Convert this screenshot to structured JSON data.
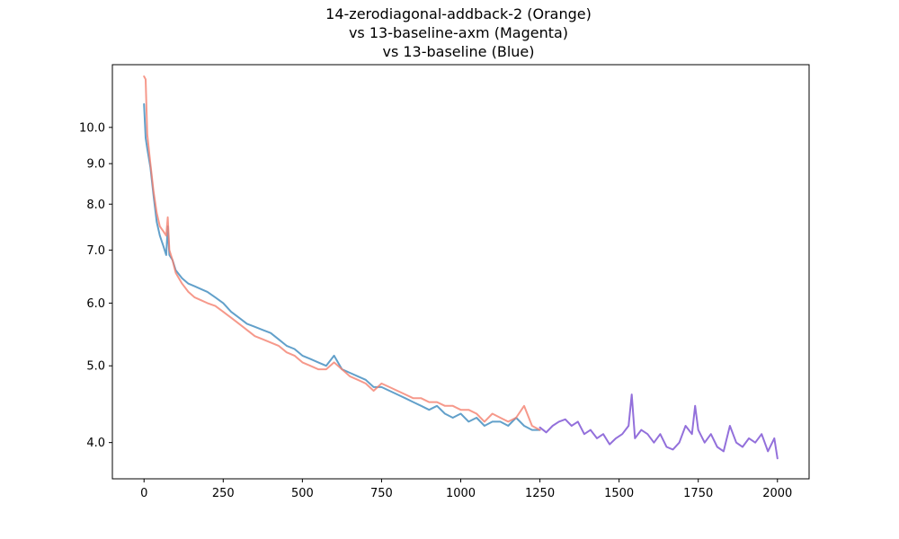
{
  "chart_data": {
    "type": "line",
    "title": [
      "14-zerodiagonal-addback-2 (Orange)",
      "vs 13-baseline-axm (Magenta)",
      "vs 13-baseline (Blue)"
    ],
    "xlabel": "",
    "ylabel": "",
    "xlim": [
      -100,
      2100
    ],
    "ylim": [
      3.6,
      12.0
    ],
    "yscale": "log",
    "grid": false,
    "x_ticks": [
      0,
      250,
      500,
      750,
      1000,
      1250,
      1500,
      1750,
      2000
    ],
    "x_tick_labels": [
      "0",
      "250",
      "500",
      "750",
      "1000",
      "1250",
      "1500",
      "1750",
      "2000"
    ],
    "y_ticks": [
      4.0,
      5.0,
      6.0,
      7.0,
      8.0,
      9.0,
      10.0
    ],
    "y_tick_labels": [
      "4.0",
      "5.0",
      "6.0",
      "7.0",
      "8.0",
      "9.0",
      "10.0"
    ],
    "series": [
      {
        "color": "#9370DB",
        "opacity": 1.0,
        "x": [
          1250,
          1270,
          1290,
          1310,
          1330,
          1350,
          1370,
          1390,
          1410,
          1430,
          1450,
          1470,
          1490,
          1510,
          1530,
          1540,
          1550,
          1570,
          1590,
          1610,
          1630,
          1650,
          1670,
          1690,
          1710,
          1730,
          1740,
          1750,
          1770,
          1790,
          1810,
          1830,
          1850,
          1870,
          1890,
          1910,
          1930,
          1950,
          1970,
          1990,
          2000
        ],
        "y": [
          4.18,
          4.12,
          4.2,
          4.25,
          4.28,
          4.2,
          4.25,
          4.1,
          4.15,
          4.05,
          4.1,
          3.98,
          4.05,
          4.1,
          4.2,
          4.6,
          4.05,
          4.15,
          4.1,
          4.0,
          4.1,
          3.95,
          3.92,
          4.0,
          4.2,
          4.1,
          4.45,
          4.15,
          4.0,
          4.1,
          3.95,
          3.9,
          4.2,
          4.0,
          3.95,
          4.05,
          4.0,
          4.1,
          3.9,
          4.05,
          3.82
        ]
      },
      {
        "color": "#1f77b4",
        "opacity": 0.7,
        "x": [
          0,
          5,
          10,
          20,
          30,
          40,
          50,
          60,
          70,
          75,
          80,
          90,
          100,
          120,
          140,
          160,
          180,
          200,
          225,
          250,
          275,
          300,
          325,
          350,
          375,
          400,
          425,
          450,
          475,
          500,
          525,
          550,
          575,
          600,
          625,
          650,
          675,
          700,
          725,
          750,
          775,
          800,
          825,
          850,
          875,
          900,
          925,
          950,
          975,
          1000,
          1025,
          1050,
          1075,
          1100,
          1125,
          1150,
          1175,
          1200,
          1225,
          1250
        ],
        "y": [
          10.7,
          9.7,
          9.4,
          8.9,
          8.2,
          7.6,
          7.3,
          7.1,
          6.9,
          7.5,
          6.9,
          6.8,
          6.6,
          6.45,
          6.35,
          6.3,
          6.25,
          6.2,
          6.1,
          6.0,
          5.85,
          5.75,
          5.65,
          5.6,
          5.55,
          5.5,
          5.4,
          5.3,
          5.25,
          5.15,
          5.1,
          5.05,
          5.0,
          5.15,
          4.95,
          4.9,
          4.85,
          4.8,
          4.7,
          4.7,
          4.65,
          4.6,
          4.55,
          4.5,
          4.45,
          4.4,
          4.45,
          4.35,
          4.3,
          4.35,
          4.25,
          4.3,
          4.2,
          4.25,
          4.25,
          4.2,
          4.3,
          4.2,
          4.15,
          4.15
        ]
      },
      {
        "color": "#f4806e",
        "opacity": 0.8,
        "x": [
          0,
          5,
          10,
          20,
          30,
          40,
          50,
          60,
          70,
          75,
          80,
          90,
          100,
          120,
          140,
          160,
          180,
          200,
          225,
          250,
          275,
          300,
          325,
          350,
          375,
          400,
          425,
          450,
          475,
          500,
          525,
          550,
          575,
          600,
          625,
          650,
          675,
          700,
          725,
          750,
          775,
          800,
          825,
          850,
          875,
          900,
          925,
          950,
          975,
          1000,
          1025,
          1050,
          1075,
          1100,
          1125,
          1150,
          1175,
          1200,
          1225,
          1250
        ],
        "y": [
          11.6,
          11.5,
          9.8,
          9.0,
          8.3,
          7.8,
          7.5,
          7.4,
          7.3,
          7.7,
          7.0,
          6.8,
          6.55,
          6.35,
          6.2,
          6.1,
          6.05,
          6.0,
          5.95,
          5.85,
          5.75,
          5.65,
          5.55,
          5.45,
          5.4,
          5.35,
          5.3,
          5.2,
          5.15,
          5.05,
          5.0,
          4.95,
          4.95,
          5.05,
          4.95,
          4.85,
          4.8,
          4.75,
          4.65,
          4.75,
          4.7,
          4.65,
          4.6,
          4.55,
          4.55,
          4.5,
          4.5,
          4.45,
          4.45,
          4.4,
          4.4,
          4.35,
          4.25,
          4.35,
          4.3,
          4.25,
          4.3,
          4.45,
          4.2,
          4.15
        ]
      }
    ]
  }
}
